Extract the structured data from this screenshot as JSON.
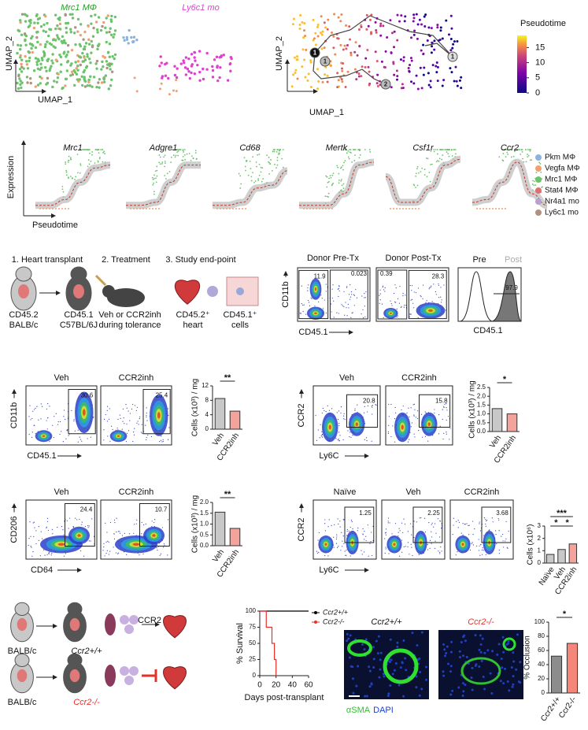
{
  "figure": {
    "a": {
      "clusters": [
        "Mrc1 MΦ",
        "Ly6c1 mo"
      ],
      "cluster_colors": [
        "#22a022",
        "#e040d0"
      ],
      "umap_y": "UMAP_2",
      "umap_x": "UMAP_1",
      "traj_y": "UMAP_2",
      "traj_x": "UMAP_1",
      "nodes": [
        "1",
        "1",
        "2",
        "1"
      ],
      "colorbar": {
        "title": "Pseudotime",
        "ticks": [
          0,
          5,
          10,
          15
        ],
        "lim": [
          0,
          19
        ]
      }
    },
    "b": {
      "genes": [
        "Mrc1",
        "Adgre1",
        "Cd68",
        "Mertk",
        "Csf1r",
        "Ccr2"
      ],
      "ylabel": "Expression",
      "xlabel": "Pseudotime",
      "legend": [
        {
          "name": "Pkm MΦ",
          "color": "#8ab4dc"
        },
        {
          "name": "Vegfa MΦ",
          "color": "#f0a070"
        },
        {
          "name": "Mrc1 MΦ",
          "color": "#6cc36c"
        },
        {
          "name": "Stat4 MΦ",
          "color": "#e07070"
        },
        {
          "name": "Nr4a1 mo",
          "color": "#b8a0d0"
        },
        {
          "name": "Ly6c1 mo",
          "color": "#b09080"
        }
      ]
    },
    "c": {
      "steps": [
        "1. Heart transplant",
        "2. Treatment",
        "3. Study end-point"
      ],
      "captions": [
        [
          "CD45.2",
          "BALB/c"
        ],
        [
          "CD45.1",
          "C57BL/6J"
        ],
        [
          "Veh or CCR2inh",
          "during tolerance"
        ],
        [
          "CD45.2⁺",
          "heart"
        ],
        [
          "CD45.1⁺",
          "cells"
        ]
      ],
      "flow_titles": [
        "Donor Pre-Tx",
        "Donor Post-Tx"
      ],
      "gates": [
        11.9,
        0.023,
        0.39,
        28.3
      ],
      "flow_y": "CD11b",
      "flow_x": "CD45.1",
      "hist_legend": [
        "Pre",
        "Post"
      ],
      "hist_gate": 97.9,
      "hist_x": "CD45.1"
    },
    "d": {
      "left": {
        "titles": [
          "Veh",
          "CCR2inh"
        ],
        "gates": [
          30.6,
          25.4
        ],
        "y": "CD11b",
        "x": "CD45.1"
      },
      "right": {
        "titles": [
          "Veh",
          "CCR2inh"
        ],
        "gates": [
          20.8,
          15.8
        ],
        "y": "CCR2",
        "x": "Ly6C"
      }
    },
    "e": {
      "left": {
        "titles": [
          "Veh",
          "CCR2inh"
        ],
        "gates": [
          24.4,
          10.7
        ],
        "y": "CD206",
        "x": "CD64"
      },
      "right": {
        "titles": [
          "Naïve",
          "Veh",
          "CCR2inh"
        ],
        "gates": [
          1.25,
          2.25,
          3.68
        ],
        "y": "CCR2",
        "x": "Ly6C"
      }
    },
    "f": {
      "donors": [
        "BALB/c",
        "BALB/c"
      ],
      "recipients": [
        "Ccr2+/+",
        "Ccr2-/-"
      ],
      "arrow_label": "CCR2",
      "images": [
        "Ccr2+/+",
        "Ccr2-/-"
      ],
      "stains": [
        "αSMA",
        "DAPI"
      ]
    }
  },
  "chart_data": [
    {
      "type": "bar",
      "ylabel": "Cells (x10³) / mg",
      "categories": [
        "Veh",
        "CCR2inh"
      ],
      "values": [
        8.5,
        5.0
      ],
      "colors": [
        "#c8c8c8",
        "#f4a39c"
      ],
      "ylim": [
        0,
        12
      ],
      "yticks": [
        0,
        4,
        8,
        12
      ],
      "significance": [
        "**"
      ]
    },
    {
      "type": "bar",
      "ylabel": "Cells (x10³) / mg",
      "categories": [
        "Veh",
        "CCR2inh"
      ],
      "values": [
        1.3,
        1.0
      ],
      "colors": [
        "#c8c8c8",
        "#f4a39c"
      ],
      "ylim": [
        0,
        2.5
      ],
      "yticks": [
        {
          "value": 0,
          "label": "0.0"
        },
        0.5,
        {
          "value": 1,
          "label": "1.0"
        },
        1.5,
        {
          "value": 2,
          "label": "2.0"
        },
        2.5
      ],
      "significance": [
        "*"
      ]
    },
    {
      "type": "bar",
      "ylabel": "Cells (x10³) / mg",
      "categories": [
        "Veh",
        "CCR2inh"
      ],
      "values": [
        1.55,
        0.8
      ],
      "colors": [
        "#c8c8c8",
        "#f4a39c"
      ],
      "ylim": [
        0,
        2
      ],
      "yticks": [
        {
          "value": 0,
          "label": "0.0"
        },
        0.5,
        {
          "value": 1,
          "label": "1.0"
        },
        1.5,
        {
          "value": 2,
          "label": "2.0"
        }
      ],
      "significance": [
        "**"
      ]
    },
    {
      "type": "bar",
      "ylabel": "Cells (x10⁶)",
      "categories": [
        "Naïve",
        "Veh",
        "CCR2inh"
      ],
      "values": [
        0.7,
        1.1,
        1.55
      ],
      "colors": [
        "#c8c8c8",
        "#c8c8c8",
        "#f4a39c"
      ],
      "ylim": [
        0,
        3
      ],
      "yticks": [
        0,
        1,
        2,
        3
      ],
      "significance": [
        "***",
        "*",
        "*"
      ]
    },
    {
      "type": "line",
      "ylabel": "% Survival",
      "xlabel": "Days post-transplant",
      "xlim": [
        0,
        60
      ],
      "xticks": [
        0,
        20,
        40,
        60
      ],
      "ylim": [
        0,
        100
      ],
      "yticks": [
        0,
        25,
        50,
        75,
        100
      ],
      "series": [
        {
          "name": "Ccr2+/+",
          "color": "#000000",
          "x": [
            0,
            60
          ],
          "values": [
            100,
            100
          ]
        },
        {
          "name": "Ccr2-/-",
          "color": "#e8302a",
          "x": [
            0,
            8,
            8,
            15,
            15,
            18,
            18,
            20,
            20
          ],
          "values": [
            100,
            100,
            75,
            75,
            50,
            50,
            25,
            25,
            0
          ]
        }
      ]
    },
    {
      "type": "bar",
      "ylabel": "% Occlusion",
      "categories": [
        "Ccr2+/+",
        "Ccr2-/-"
      ],
      "values": [
        52,
        70
      ],
      "colors": [
        "#8c8c8c",
        "#f4877a"
      ],
      "ylim": [
        0,
        100
      ],
      "yticks": [
        0,
        20,
        40,
        60,
        80,
        100
      ],
      "significance": [
        "*"
      ]
    }
  ]
}
